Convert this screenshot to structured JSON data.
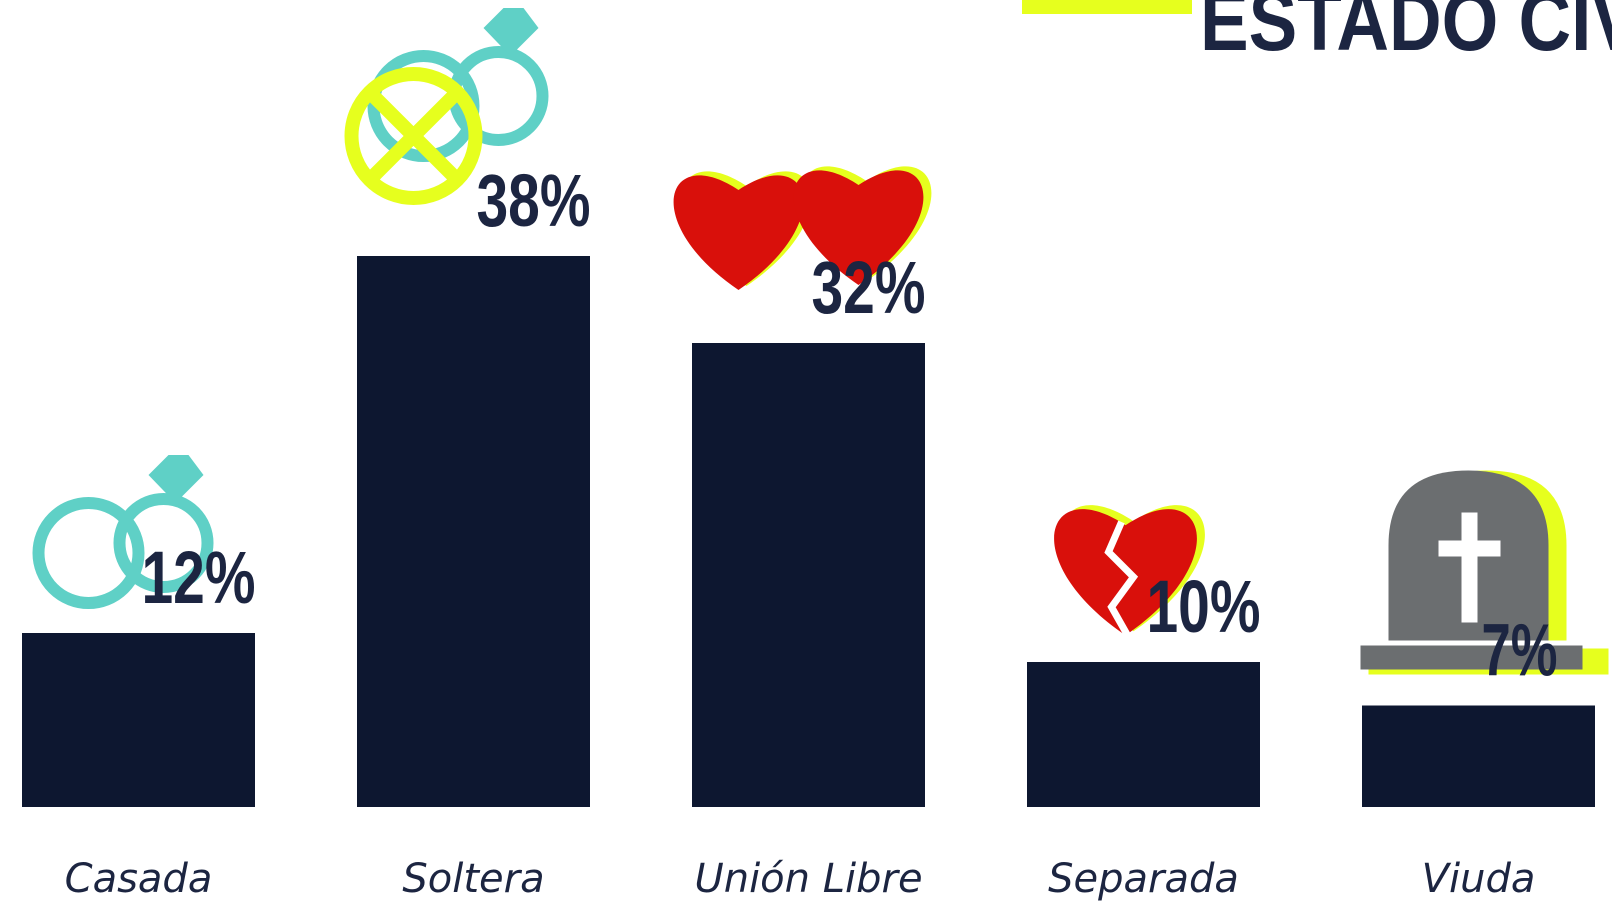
{
  "chart_data": {
    "type": "bar",
    "title": "ESTADO CIV",
    "categories": [
      "Casada",
      "Soltera",
      "Unión Libre",
      "Separada",
      "Viuda"
    ],
    "values": [
      12,
      38,
      32,
      10,
      7
    ],
    "value_labels": [
      "12%",
      "38%",
      "32%",
      "10%",
      "7%"
    ],
    "color": "#0d1730"
  }
}
